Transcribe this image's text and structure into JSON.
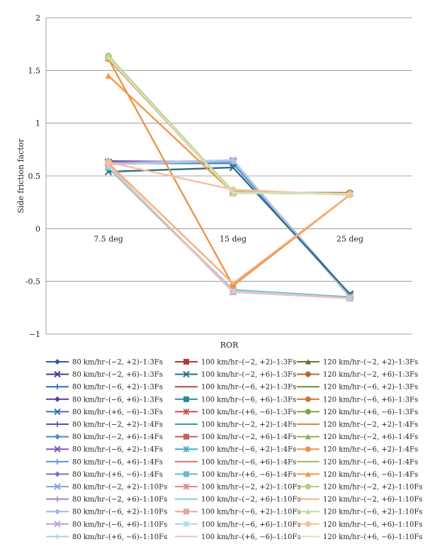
{
  "chart_data": {
    "type": "line",
    "categories": [
      "7.5 deg",
      "15 deg",
      "25 deg"
    ],
    "xlabel": "ROR",
    "ylabel": "Side friction factor",
    "ylim": [
      -1,
      2
    ],
    "yticks": [
      -1,
      -0.5,
      0,
      0.5,
      1,
      1.5,
      2
    ],
    "ytick_labels": [
      "−1",
      "-0.5",
      "0",
      "0.5",
      "1",
      "1.5",
      "2"
    ],
    "grid": "horizontal",
    "legend_position": "bottom",
    "series": [
      {
        "name": "80 km/hr–(−2, +2)–1:3Fs",
        "color": "#2E5C9E",
        "marker": "diamond",
        "values": [
          0.62,
          0.62,
          -0.63
        ]
      },
      {
        "name": "80 km/hr–(−2, +6)–1:3Fs",
        "color": "#4B3A86",
        "marker": "x",
        "values": [
          0.63,
          0.63,
          -0.64
        ]
      },
      {
        "name": "80 km/hr–(−6, +2)–1:3Fs",
        "color": "#2F6DB5",
        "marker": "plus",
        "values": [
          0.62,
          0.62,
          -0.63
        ]
      },
      {
        "name": "80 km/hr–(−6, +6)–1:3Fs",
        "color": "#5B3F8F",
        "marker": "diamond",
        "values": [
          0.64,
          0.63,
          -0.64
        ]
      },
      {
        "name": "80 km/hr–(+6, −6)–1:3Fs",
        "color": "#3A73B8",
        "marker": "x",
        "values": [
          0.62,
          0.64,
          -0.63
        ]
      },
      {
        "name": "80 km/hr–(−2, +2)–1:4Fs",
        "color": "#6A4AA0",
        "marker": "plus",
        "values": [
          0.63,
          0.63,
          -0.64
        ]
      },
      {
        "name": "80 km/hr–(−2, +6)–1:4Fs",
        "color": "#4F86C6",
        "marker": "diamond",
        "values": [
          0.62,
          0.62,
          -0.63
        ]
      },
      {
        "name": "80 km/hr–(−6, +2)–1:4Fs",
        "color": "#7A5AB2",
        "marker": "x",
        "values": [
          0.63,
          0.64,
          -0.64
        ]
      },
      {
        "name": "80 km/hr–(−6, +6)–1:4Fs",
        "color": "#5E93CF",
        "marker": "plus",
        "values": [
          0.62,
          0.63,
          -0.63
        ]
      },
      {
        "name": "80 km/hr–(+6, −6)–1:4Fs",
        "color": "#8A6CC0",
        "marker": "diamond",
        "values": [
          0.63,
          0.64,
          -0.64
        ]
      },
      {
        "name": "80 km/hr–(−2, +2)–1:10Fs",
        "color": "#7FA8D8",
        "marker": "x",
        "values": [
          0.62,
          0.64,
          -0.64
        ]
      },
      {
        "name": "80 km/hr–(−2, +6)–1:10Fs",
        "color": "#9E86CC",
        "marker": "plus",
        "values": [
          0.62,
          0.64,
          -0.65
        ]
      },
      {
        "name": "80 km/hr–(−6, +2)–1:10Fs",
        "color": "#9BB9E0",
        "marker": "diamond",
        "values": [
          0.61,
          0.64,
          -0.64
        ]
      },
      {
        "name": "80 km/hr–(−6, +6)–1:10Fs",
        "color": "#B5A4D8",
        "marker": "x",
        "values": [
          0.62,
          0.65,
          -0.65
        ]
      },
      {
        "name": "80 km/hr–(+6, −6)–1:10Fs",
        "color": "#B4C9E8",
        "marker": "plus",
        "values": [
          0.61,
          0.65,
          -0.65
        ]
      },
      {
        "name": "100 km/hr–(−2, +2)–1:3Fs",
        "color": "#B23A35",
        "marker": "square",
        "values": [
          1.62,
          0.34,
          0.33
        ]
      },
      {
        "name": "100 km/hr–(−2, +6)–1:3Fs",
        "color": "#2D6E83",
        "marker": "x",
        "values": [
          0.54,
          0.58,
          -0.62
        ]
      },
      {
        "name": "100 km/hr–(−6, +2)–1:3Fs",
        "color": "#B04A3C",
        "marker": "none",
        "values": [
          0.6,
          -0.6,
          -0.65
        ]
      },
      {
        "name": "100 km/hr–(−6, +6)–1:3Fs",
        "color": "#2F86A0",
        "marker": "square",
        "values": [
          0.58,
          -0.59,
          -0.65
        ]
      },
      {
        "name": "100 km/hr–(+6, −6)–1:3Fs",
        "color": "#C0504D",
        "marker": "asterisk",
        "values": [
          0.6,
          -0.6,
          -0.65
        ]
      },
      {
        "name": "100 km/hr–(−2, +2)–1:4Fs",
        "color": "#3C95AE",
        "marker": "none",
        "values": [
          0.58,
          -0.59,
          -0.65
        ]
      },
      {
        "name": "100 km/hr–(−2, +6)–1:4Fs",
        "color": "#C85F5B",
        "marker": "square",
        "values": [
          0.6,
          -0.6,
          -0.65
        ]
      },
      {
        "name": "100 km/hr–(−6, +2)–1:4Fs",
        "color": "#4BACC6",
        "marker": "asterisk",
        "values": [
          0.59,
          -0.59,
          -0.65
        ]
      },
      {
        "name": "100 km/hr–(−6, +6)–1:4Fs",
        "color": "#D07570",
        "marker": "none",
        "values": [
          0.6,
          -0.6,
          -0.65
        ]
      },
      {
        "name": "100 km/hr–(+6, −6)–1:4Fs",
        "color": "#6BBAD2",
        "marker": "square",
        "values": [
          0.58,
          -0.58,
          -0.65
        ]
      },
      {
        "name": "100 km/hr–(−2, +2)–1:10Fs",
        "color": "#D98E8A",
        "marker": "asterisk",
        "values": [
          0.6,
          -0.6,
          -0.66
        ]
      },
      {
        "name": "100 km/hr–(−2, +6)–1:10Fs",
        "color": "#8CCADC",
        "marker": "none",
        "values": [
          0.59,
          -0.59,
          -0.66
        ]
      },
      {
        "name": "100 km/hr–(−6, +2)–1:10Fs",
        "color": "#E3A8A5",
        "marker": "square",
        "values": [
          0.6,
          -0.6,
          -0.66
        ]
      },
      {
        "name": "100 km/hr–(−6, +6)–1:10Fs",
        "color": "#A9D8E6",
        "marker": "asterisk",
        "values": [
          0.59,
          -0.59,
          -0.66
        ]
      },
      {
        "name": "100 km/hr–(+6, −6)–1:10Fs",
        "color": "#EDC1BE",
        "marker": "none",
        "values": [
          0.6,
          -0.6,
          -0.66
        ]
      },
      {
        "name": "120 km/hr–(−2, +2)–1:3Fs",
        "color": "#5E7A28",
        "marker": "triangle",
        "values": [
          1.63,
          0.35,
          0.33
        ]
      },
      {
        "name": "120 km/hr–(−2, +6)–1:3Fs",
        "color": "#B86A2A",
        "marker": "circle",
        "values": [
          1.62,
          0.34,
          0.34
        ]
      },
      {
        "name": "120 km/hr–(−6, +2)–1:3Fs",
        "color": "#6F8F32",
        "marker": "none",
        "values": [
          1.62,
          0.35,
          0.33
        ]
      },
      {
        "name": "120 km/hr–(−6, +6)–1:3Fs",
        "color": "#C87A33",
        "marker": "circle",
        "values": [
          1.61,
          0.34,
          0.34
        ]
      },
      {
        "name": "120 km/hr–(+6, −6)–1:3Fs",
        "color": "#7FA33C",
        "marker": "circle",
        "values": [
          1.63,
          0.35,
          0.33
        ]
      },
      {
        "name": "120 km/hr–(−2, +2)–1:4Fs",
        "color": "#D8893C",
        "marker": "none",
        "values": [
          1.62,
          0.34,
          0.33
        ]
      },
      {
        "name": "120 km/hr–(−2, +6)–1:4Fs",
        "color": "#8DB14A",
        "marker": "triangle",
        "values": [
          1.63,
          0.35,
          0.33
        ]
      },
      {
        "name": "120 km/hr–(−6, +2)–1:4Fs",
        "color": "#E8964A",
        "marker": "circle",
        "values": [
          1.61,
          -0.54,
          0.32
        ]
      },
      {
        "name": "120 km/hr–(−6, +6)–1:4Fs",
        "color": "#9BBB59",
        "marker": "none",
        "values": [
          1.64,
          0.34,
          0.33
        ]
      },
      {
        "name": "120 km/hr–(+6, −6)–1:4Fs",
        "color": "#F79646",
        "marker": "triangle",
        "values": [
          1.45,
          0.34,
          0.33
        ]
      },
      {
        "name": "120 km/hr–(−2, +2)–1:10Fs",
        "color": "#B0CC80",
        "marker": "circle",
        "values": [
          1.64,
          0.35,
          0.33
        ]
      },
      {
        "name": "120 km/hr–(−2, +6)–1:10Fs",
        "color": "#F5AE78",
        "marker": "none",
        "values": [
          0.62,
          -0.52,
          0.32
        ]
      },
      {
        "name": "120 km/hr–(−6, +2)–1:10Fs",
        "color": "#C4D8A0",
        "marker": "triangle",
        "values": [
          1.63,
          0.34,
          0.33
        ]
      },
      {
        "name": "120 km/hr–(−6, +6)–1:10Fs",
        "color": "#F7C09A",
        "marker": "circle",
        "values": [
          0.63,
          0.37,
          0.32
        ]
      },
      {
        "name": "120 km/hr–(+6, −6)–1:10Fs",
        "color": "#D6E3C0",
        "marker": "none",
        "values": [
          1.62,
          0.34,
          0.33
        ]
      }
    ]
  }
}
